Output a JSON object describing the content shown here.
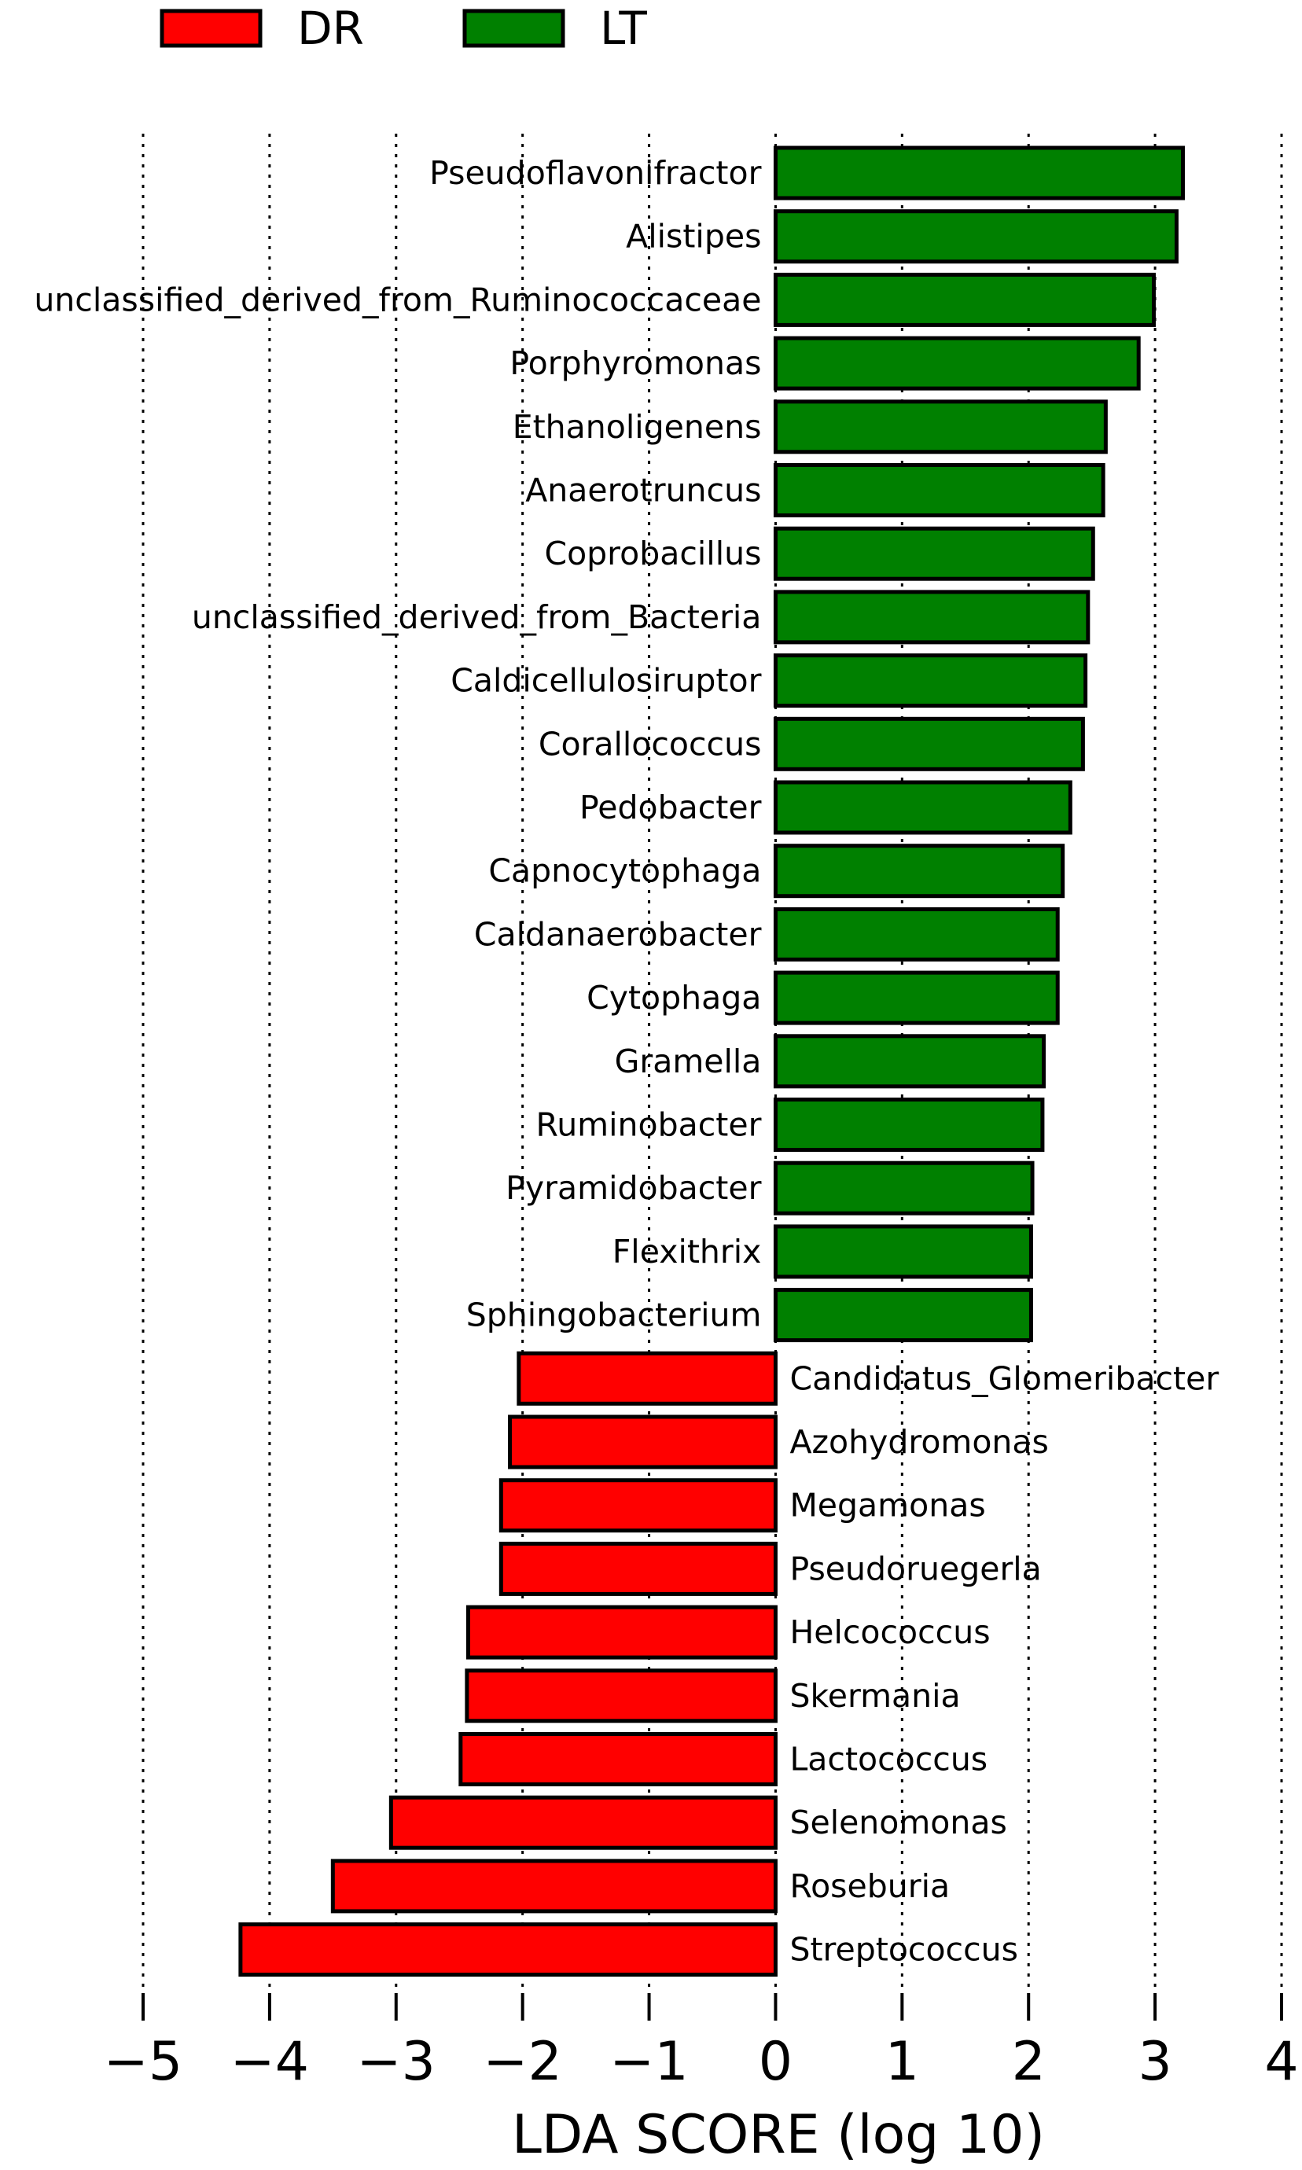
{
  "chart_data": {
    "type": "bar",
    "orientation": "horizontal",
    "xlabel": "LDA SCORE (log 10)",
    "ylabel": "",
    "xlim": [
      -5,
      4
    ],
    "x_ticks": [
      -5,
      -4,
      -3,
      -2,
      -1,
      0,
      1,
      2,
      3,
      4
    ],
    "x_tick_labels": [
      "−5",
      "−4",
      "−3",
      "−2",
      "−1",
      "0",
      "1",
      "2",
      "3",
      "4"
    ],
    "grid": "vertical dotted lines at each x tick",
    "legend": {
      "placement": "top-left",
      "entries": [
        {
          "name": "DR",
          "color": "#ff0000"
        },
        {
          "name": "LT",
          "color": "#008000"
        }
      ]
    },
    "categories": [
      "Pseudoflavonifractor",
      "Alistipes",
      "unclassified_derived_from_Ruminococcaceae",
      "Porphyromonas",
      "Ethanoligenens",
      "Anaerotruncus",
      "Coprobacillus",
      "unclassified_derived_from_Bacteria",
      "Caldicellulosiruptor",
      "Corallococcus",
      "Pedobacter",
      "Capnocytophaga",
      "Caldanaerobacter",
      "Cytophaga",
      "Gramella",
      "Ruminobacter",
      "Pyramidobacter",
      "Flexithrix",
      "Sphingobacterium",
      "Candidatus_Glomeribacter",
      "Azohydromonas",
      "Megamonas",
      "Pseudoruegerla",
      "Helcococcus",
      "Skermania",
      "Lactococcus",
      "Selenomonas",
      "Roseburia",
      "Streptococcus"
    ],
    "values": [
      3.22,
      3.17,
      2.99,
      2.87,
      2.61,
      2.59,
      2.51,
      2.47,
      2.45,
      2.43,
      2.33,
      2.27,
      2.23,
      2.23,
      2.12,
      2.11,
      2.03,
      2.02,
      2.02,
      -2.03,
      -2.1,
      -2.17,
      -2.17,
      -2.43,
      -2.44,
      -2.49,
      -3.04,
      -3.5,
      -4.23
    ],
    "groups": [
      "LT",
      "LT",
      "LT",
      "LT",
      "LT",
      "LT",
      "LT",
      "LT",
      "LT",
      "LT",
      "LT",
      "LT",
      "LT",
      "LT",
      "LT",
      "LT",
      "LT",
      "LT",
      "LT",
      "DR",
      "DR",
      "DR",
      "DR",
      "DR",
      "DR",
      "DR",
      "DR",
      "DR",
      "DR"
    ],
    "colors": {
      "DR": "#ff0000",
      "LT": "#008000",
      "bar_edge": "#000000",
      "grid": "#000000"
    }
  }
}
